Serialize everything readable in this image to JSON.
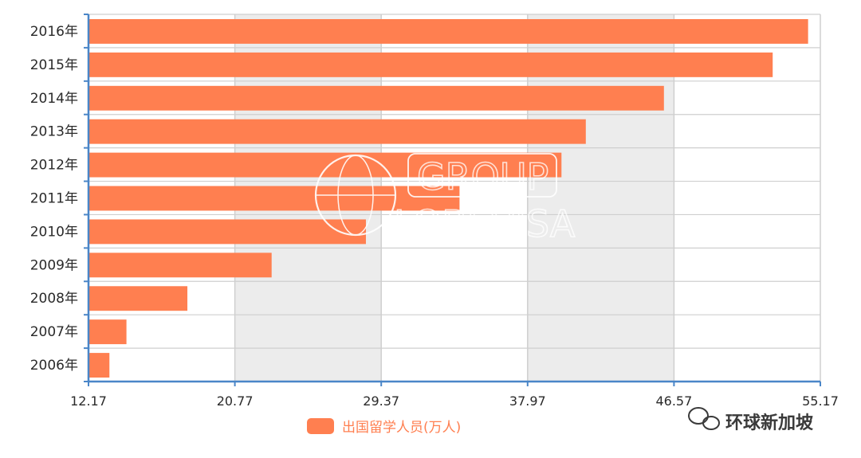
{
  "colors": {
    "bar": "#ff7f50",
    "axis": "#4a86c8",
    "band": "#ececec",
    "grid": "#cfcfcf"
  },
  "chart_data": {
    "type": "bar",
    "orientation": "horizontal",
    "categories": [
      "2016年",
      "2015年",
      "2014年",
      "2013年",
      "2012年",
      "2011年",
      "2010年",
      "2009年",
      "2008年",
      "2007年",
      "2006年"
    ],
    "series": [
      {
        "name": "出国留学人员(万人)",
        "values": [
          54.45,
          52.37,
          45.98,
          41.39,
          39.96,
          33.97,
          28.47,
          22.93,
          17.98,
          14.4,
          13.4
        ]
      }
    ],
    "xlim": [
      12.17,
      55.17
    ],
    "xticks": [
      "12.17",
      "20.77",
      "29.37",
      "37.97",
      "46.57",
      "55.17"
    ],
    "grid": true,
    "legend_position": "bottom-center"
  },
  "watermark": {
    "line1": "GROUP",
    "line2": "LOBEVISA"
  },
  "brand": {
    "icon": "wechat-icon",
    "text": "环球新加坡"
  }
}
